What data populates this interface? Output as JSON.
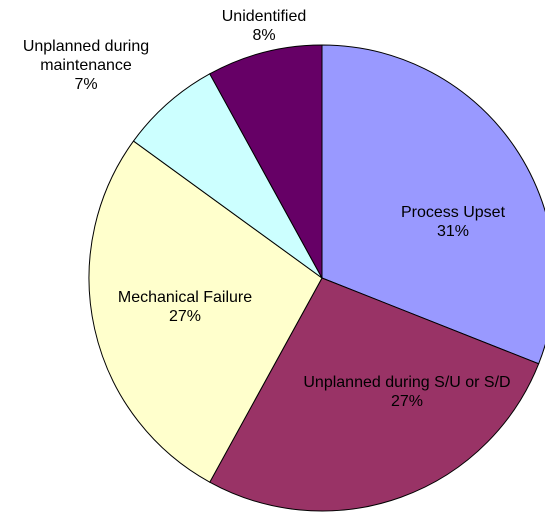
{
  "chart_data": {
    "type": "pie",
    "categories": [
      "Process Upset",
      "Unplanned during S/U or S/D",
      "Mechanical Failure",
      "Unplanned during maintenance",
      "Unidentified"
    ],
    "values": [
      31,
      27,
      27,
      7,
      8
    ],
    "value_labels": [
      "31%",
      "27%",
      "27%",
      "7%",
      "8%"
    ],
    "colors": [
      "#9999ff",
      "#993366",
      "#ffffcc",
      "#ccffff",
      "#660066"
    ]
  }
}
